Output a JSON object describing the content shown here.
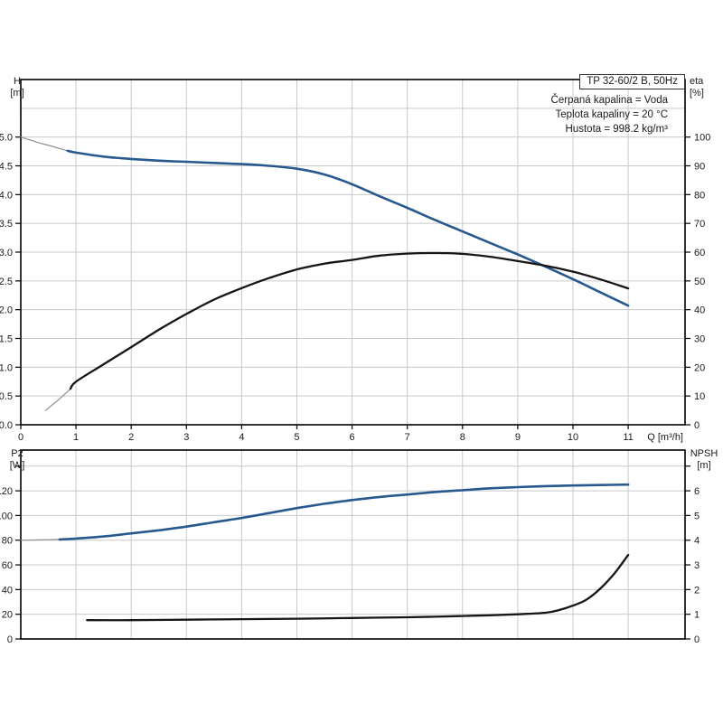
{
  "header": {
    "info_lines": [
      "Čerpaná kapalina = Voda",
      "Teplota kapaliny = 20 °C",
      "Hustota = 998.2 kg/m³"
    ]
  },
  "colors": {
    "curve_blue": "#27598f",
    "curve_black": "#161616",
    "thin_gray": "#8e8e8e",
    "grid": "#c9c9c9",
    "frame": "#000000",
    "text": "#1a1a1a"
  },
  "chart_data": [
    {
      "id": "head_efficiency",
      "type": "line",
      "title": "TP 32-60/2 B, 50Hz",
      "x_axis": {
        "label": "Q [m³/h]",
        "lim": [
          0,
          12.03
        ],
        "ticks": [
          [
            0,
            "0"
          ],
          [
            1,
            "1"
          ],
          [
            2,
            "2"
          ],
          [
            3,
            "3"
          ],
          [
            4,
            "4"
          ],
          [
            5,
            "5"
          ],
          [
            6,
            "6"
          ],
          [
            7,
            "7"
          ],
          [
            8,
            "8"
          ],
          [
            9,
            "9"
          ],
          [
            10,
            "10"
          ],
          [
            11,
            "11"
          ]
        ],
        "grid": [
          1,
          2,
          3,
          4,
          5,
          6,
          7,
          8,
          9,
          10,
          11
        ]
      },
      "y_left": {
        "label": [
          "H",
          "[m]"
        ],
        "lim": [
          0,
          6
        ],
        "ticks": [
          [
            0,
            "0.0"
          ],
          [
            0.5,
            "0.5"
          ],
          [
            1,
            "1.0"
          ],
          [
            1.5,
            "1.5"
          ],
          [
            2,
            "2.0"
          ],
          [
            2.5,
            "2.5"
          ],
          [
            3,
            "3.0"
          ],
          [
            3.5,
            "3.5"
          ],
          [
            4,
            "4.0"
          ],
          [
            4.5,
            "4.5"
          ],
          [
            5,
            "5.0"
          ]
        ],
        "grid": [
          0.5,
          1,
          1.5,
          2,
          2.5,
          3,
          3.5,
          4,
          4.5,
          5,
          5.5
        ]
      },
      "y_right": {
        "label": [
          "eta",
          "[%]"
        ],
        "lim": [
          0,
          120
        ],
        "ticks": [
          [
            0,
            "0"
          ],
          [
            10,
            "10"
          ],
          [
            20,
            "20"
          ],
          [
            30,
            "30"
          ],
          [
            40,
            "40"
          ],
          [
            50,
            "50"
          ],
          [
            60,
            "60"
          ],
          [
            70,
            "70"
          ],
          [
            80,
            "80"
          ],
          [
            90,
            "90"
          ],
          [
            100,
            "100"
          ]
        ]
      },
      "series": [
        {
          "name": "head-curve-out-of-range",
          "axis": "left",
          "style": "thin",
          "points": [
            [
              0,
              5.0
            ],
            [
              0.3,
              4.91
            ],
            [
              0.6,
              4.83
            ],
            [
              0.85,
              4.76
            ]
          ]
        },
        {
          "name": "head-curve",
          "axis": "left",
          "style": "blue",
          "points": [
            [
              0.85,
              4.76
            ],
            [
              1,
              4.73
            ],
            [
              1.5,
              4.66
            ],
            [
              2,
              4.62
            ],
            [
              2.5,
              4.59
            ],
            [
              3,
              4.57
            ],
            [
              3.5,
              4.55
            ],
            [
              4,
              4.53
            ],
            [
              4.5,
              4.5
            ],
            [
              5,
              4.45
            ],
            [
              5.5,
              4.35
            ],
            [
              6,
              4.18
            ],
            [
              6.5,
              3.97
            ],
            [
              7,
              3.77
            ],
            [
              7.5,
              3.56
            ],
            [
              8,
              3.36
            ],
            [
              8.5,
              3.16
            ],
            [
              9,
              2.96
            ],
            [
              9.5,
              2.75
            ],
            [
              10,
              2.53
            ],
            [
              10.5,
              2.3
            ],
            [
              11,
              2.07
            ]
          ]
        },
        {
          "name": "eta-curve-out-of-range",
          "axis": "right",
          "style": "thin",
          "points": [
            [
              0.45,
              5
            ],
            [
              0.7,
              9
            ],
            [
              0.9,
              12.5
            ]
          ]
        },
        {
          "name": "eta-curve",
          "axis": "right",
          "style": "black",
          "points": [
            [
              0.9,
              12.5
            ],
            [
              1,
              15
            ],
            [
              1.5,
              21
            ],
            [
              2,
              27
            ],
            [
              2.5,
              33
            ],
            [
              3,
              38.5
            ],
            [
              3.5,
              43.5
            ],
            [
              4,
              47.5
            ],
            [
              4.5,
              51
            ],
            [
              5,
              54
            ],
            [
              5.5,
              56
            ],
            [
              6,
              57.3
            ],
            [
              6.5,
              58.8
            ],
            [
              7,
              59.5
            ],
            [
              7.5,
              59.7
            ],
            [
              8,
              59.4
            ],
            [
              8.5,
              58.4
            ],
            [
              9,
              56.9
            ],
            [
              9.5,
              55.3
            ],
            [
              10,
              53.2
            ],
            [
              10.5,
              50.5
            ],
            [
              11,
              47.4
            ]
          ]
        }
      ]
    },
    {
      "id": "power_npsh",
      "type": "line",
      "title": "",
      "x_axis": {
        "label": "",
        "lim": [
          0,
          12.03
        ],
        "ticks": [],
        "grid": [
          1,
          2,
          3,
          4,
          5,
          6,
          7,
          8,
          9,
          10,
          11
        ]
      },
      "y_left": {
        "label": [
          "P2",
          "[W]"
        ],
        "lim": [
          0,
          153
        ],
        "ticks": [
          [
            0,
            "0"
          ],
          [
            20,
            "20"
          ],
          [
            40,
            "40"
          ],
          [
            60,
            "60"
          ],
          [
            80,
            "80"
          ],
          [
            100,
            "100"
          ],
          [
            120,
            "120"
          ],
          [
            140,
            ""
          ]
        ],
        "grid": [
          20,
          40,
          60,
          80,
          100,
          120,
          140
        ]
      },
      "y_right": {
        "label": [
          "NPSH",
          "[m]"
        ],
        "lim": [
          0,
          7.65
        ],
        "ticks": [
          [
            0,
            "0"
          ],
          [
            1,
            "1"
          ],
          [
            2,
            "2"
          ],
          [
            3,
            "3"
          ],
          [
            4,
            "4"
          ],
          [
            5,
            "5"
          ],
          [
            6,
            "6"
          ],
          [
            7,
            ""
          ]
        ]
      },
      "series": [
        {
          "name": "p2-curve-out-of-range",
          "axis": "left",
          "style": "thin",
          "points": [
            [
              0,
              80
            ],
            [
              0.35,
              80.2
            ],
            [
              0.7,
              80.6
            ]
          ]
        },
        {
          "name": "p2-curve",
          "axis": "left",
          "style": "blue",
          "points": [
            [
              0.7,
              80.6
            ],
            [
              1,
              81.3
            ],
            [
              1.5,
              83
            ],
            [
              2,
              85.5
            ],
            [
              2.5,
              88
            ],
            [
              3,
              91
            ],
            [
              3.5,
              94.5
            ],
            [
              4,
              98
            ],
            [
              4.5,
              102
            ],
            [
              5,
              106
            ],
            [
              5.5,
              109.5
            ],
            [
              6,
              112.5
            ],
            [
              6.5,
              115
            ],
            [
              7,
              117
            ],
            [
              7.5,
              119
            ],
            [
              8,
              120.5
            ],
            [
              8.5,
              122
            ],
            [
              9,
              123
            ],
            [
              9.5,
              123.8
            ],
            [
              10,
              124.3
            ],
            [
              10.5,
              124.7
            ],
            [
              11,
              125
            ]
          ]
        },
        {
          "name": "npsh-curve",
          "axis": "right",
          "style": "black",
          "points": [
            [
              1.2,
              0.76
            ],
            [
              2,
              0.76
            ],
            [
              3,
              0.78
            ],
            [
              4,
              0.8
            ],
            [
              5,
              0.82
            ],
            [
              6,
              0.85
            ],
            [
              7,
              0.88
            ],
            [
              7.5,
              0.9
            ],
            [
              8,
              0.93
            ],
            [
              8.5,
              0.96
            ],
            [
              9,
              1.0
            ],
            [
              9.5,
              1.06
            ],
            [
              9.75,
              1.17
            ],
            [
              10,
              1.35
            ],
            [
              10.25,
              1.6
            ],
            [
              10.5,
              2.05
            ],
            [
              10.75,
              2.65
            ],
            [
              11,
              3.4
            ]
          ]
        }
      ]
    }
  ]
}
